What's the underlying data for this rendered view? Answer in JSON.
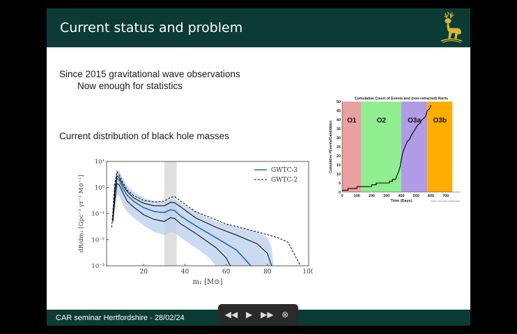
{
  "slide": {
    "title": "Current status and problem",
    "line1": "Since 2015 gravitational wave observations",
    "line2": "Now enough for statistics",
    "line3": "Current distribution of black hole masses",
    "footer": "CAR seminar Hertfordshire  - 28/02/24"
  },
  "colors": {
    "header": "#0c3b35",
    "accent": "#2c6aa8",
    "crest": "#d9b633"
  },
  "icons": [
    "hart-crest-icon",
    "rewind-icon",
    "play-icon",
    "fast-forward-icon",
    "close-icon"
  ],
  "chart_data": [
    {
      "type": "line",
      "xlabel": "m₁ [M⊙]",
      "ylabel": "dR/dm₁ [Gpc⁻³ yr⁻¹ M⊙⁻¹]",
      "xlim": [
        2,
        100
      ],
      "ylim": [
        0.001,
        10
      ],
      "yscale": "log",
      "x_ticks": [
        "20",
        "40",
        "60",
        "80",
        "100"
      ],
      "y_ticks": [
        "10⁻³",
        "10⁻²",
        "10⁻¹",
        "10⁰",
        "10¹"
      ],
      "legend": "top-right",
      "highlight_band": [
        30,
        36
      ],
      "series": [
        {
          "name": "GWTC-3",
          "style": "solid",
          "color": "#2c6aa8",
          "points": [
            [
              5,
              0.05
            ],
            [
              6,
              0.6
            ],
            [
              7,
              2.2
            ],
            [
              8,
              2.0
            ],
            [
              10,
              0.9
            ],
            [
              12,
              0.5
            ],
            [
              15,
              0.3
            ],
            [
              20,
              0.17
            ],
            [
              25,
              0.12
            ],
            [
              30,
              0.11
            ],
            [
              33,
              0.14
            ],
            [
              35,
              0.13
            ],
            [
              38,
              0.08
            ],
            [
              45,
              0.035
            ],
            [
              55,
              0.012
            ],
            [
              65,
              0.004
            ],
            [
              70,
              0.0015
            ],
            [
              72,
              0.001
            ]
          ]
        },
        {
          "name": "GWTC-2",
          "style": "dashed",
          "color": "#000000",
          "points": [
            [
              4.5,
              0.03
            ],
            [
              6,
              1.5
            ],
            [
              7,
              4.0
            ],
            [
              8,
              3.2
            ],
            [
              10,
              1.5
            ],
            [
              12,
              0.8
            ],
            [
              15,
              0.5
            ],
            [
              20,
              0.32
            ],
            [
              25,
              0.28
            ],
            [
              30,
              0.3
            ],
            [
              33,
              0.42
            ],
            [
              35,
              0.45
            ],
            [
              38,
              0.3
            ],
            [
              45,
              0.12
            ],
            [
              60,
              0.04
            ],
            [
              75,
              0.02
            ],
            [
              85,
              0.012
            ],
            [
              90,
              0.008
            ],
            [
              94,
              0.002
            ],
            [
              96,
              0.001
            ]
          ]
        },
        {
          "name": "",
          "style": "solid",
          "color": "#000000",
          "points": [
            [
              5,
              0.05
            ],
            [
              6,
              0.9
            ],
            [
              7,
              2.8
            ],
            [
              8,
              2.5
            ],
            [
              10,
              1.2
            ],
            [
              12,
              0.7
            ],
            [
              15,
              0.4
            ],
            [
              20,
              0.25
            ],
            [
              25,
              0.2
            ],
            [
              30,
              0.2
            ],
            [
              33,
              0.27
            ],
            [
              35,
              0.26
            ],
            [
              38,
              0.18
            ],
            [
              45,
              0.07
            ],
            [
              55,
              0.03
            ],
            [
              65,
              0.015
            ],
            [
              75,
              0.007
            ],
            [
              80,
              0.003
            ],
            [
              82,
              0.001
            ]
          ]
        },
        {
          "name": "",
          "style": "solid",
          "color": "#000000",
          "points": [
            [
              5,
              0.05
            ],
            [
              6,
              0.3
            ],
            [
              7,
              1.4
            ],
            [
              8,
              1.3
            ],
            [
              10,
              0.6
            ],
            [
              12,
              0.3
            ],
            [
              15,
              0.18
            ],
            [
              20,
              0.09
            ],
            [
              25,
              0.06
            ],
            [
              30,
              0.05
            ],
            [
              33,
              0.07
            ],
            [
              35,
              0.065
            ],
            [
              38,
              0.04
            ],
            [
              45,
              0.018
            ],
            [
              55,
              0.005
            ],
            [
              60,
              0.002
            ],
            [
              62,
              0.001
            ]
          ]
        }
      ],
      "band": {
        "upper": [
          [
            6,
            1.8
          ],
          [
            7,
            5.0
          ],
          [
            8,
            4.5
          ],
          [
            10,
            2.2
          ],
          [
            12,
            1.2
          ],
          [
            15,
            0.7
          ],
          [
            20,
            0.4
          ],
          [
            25,
            0.3
          ],
          [
            30,
            0.28
          ],
          [
            33,
            0.35
          ],
          [
            35,
            0.34
          ],
          [
            38,
            0.26
          ],
          [
            45,
            0.12
          ],
          [
            55,
            0.05
          ],
          [
            65,
            0.03
          ],
          [
            75,
            0.02
          ],
          [
            80,
            0.012
          ],
          [
            82,
            0.005
          ],
          [
            83,
            0.001
          ]
        ],
        "lower": [
          [
            6,
            0.1
          ],
          [
            7,
            0.5
          ],
          [
            8,
            0.5
          ],
          [
            10,
            0.2
          ],
          [
            12,
            0.12
          ],
          [
            15,
            0.07
          ],
          [
            20,
            0.035
          ],
          [
            25,
            0.02
          ],
          [
            30,
            0.015
          ],
          [
            33,
            0.02
          ],
          [
            35,
            0.018
          ],
          [
            38,
            0.012
          ],
          [
            45,
            0.005
          ],
          [
            52,
            0.002
          ],
          [
            55,
            0.001
          ]
        ]
      }
    },
    {
      "type": "area",
      "title": "Cumulative Count of Events and (non-retracted) Alerts",
      "xlabel": "Time (Days)",
      "ylabel": "Cumulative #Events/Candidates",
      "credit": "Credit: LIGO-Virgo Collaboration",
      "xlim": [
        0,
        800
      ],
      "ylim": [
        0,
        50
      ],
      "x_ticks": [
        "0",
        "100",
        "200",
        "300",
        "400",
        "500",
        "600",
        "700"
      ],
      "y_ticks": [
        "0",
        "5",
        "10",
        "15",
        "20",
        "25",
        "30",
        "35",
        "40",
        "45",
        "50"
      ],
      "runs": [
        {
          "label": "O1",
          "start": 0,
          "end": 130,
          "color": "#e8a0a0"
        },
        {
          "label": "O2",
          "start": 130,
          "end": 400,
          "color": "#90ee90"
        },
        {
          "label": "O3a",
          "start": 400,
          "end": 575,
          "color": "#b19ae6"
        },
        {
          "label": "O3b",
          "start": 575,
          "end": 745,
          "color": "#ffad00"
        }
      ],
      "step_points": [
        [
          0,
          1
        ],
        [
          40,
          1
        ],
        [
          40,
          2
        ],
        [
          100,
          2
        ],
        [
          100,
          3
        ],
        [
          200,
          3
        ],
        [
          200,
          4
        ],
        [
          230,
          4
        ],
        [
          230,
          5
        ],
        [
          320,
          5
        ],
        [
          320,
          6
        ],
        [
          340,
          6
        ],
        [
          340,
          7
        ],
        [
          360,
          7
        ],
        [
          370,
          9
        ],
        [
          380,
          11
        ],
        [
          392,
          14
        ],
        [
          400,
          18
        ],
        [
          410,
          22
        ],
        [
          420,
          24
        ],
        [
          430,
          26
        ],
        [
          440,
          28
        ],
        [
          455,
          29
        ],
        [
          465,
          31
        ],
        [
          480,
          33
        ],
        [
          495,
          35
        ],
        [
          510,
          37
        ],
        [
          525,
          38
        ],
        [
          540,
          40
        ],
        [
          555,
          41
        ],
        [
          565,
          42
        ],
        [
          575,
          45
        ],
        [
          590,
          46
        ],
        [
          600,
          48
        ]
      ]
    }
  ]
}
